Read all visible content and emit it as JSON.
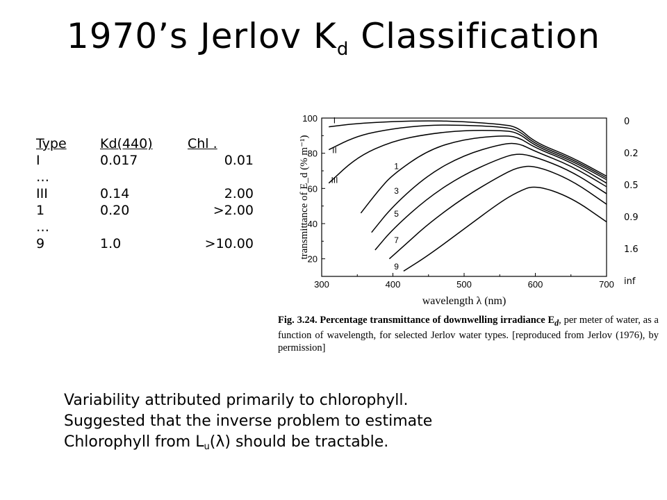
{
  "slide": {
    "title_main": "1970’s Jerlov K",
    "title_sub": "d",
    "title_rest": " Classification"
  },
  "table": {
    "headers": [
      "Type",
      "Kd(440)",
      "Chl   ."
    ],
    "rows": [
      [
        "I",
        "0.017",
        "0.01"
      ],
      [
        "…",
        "",
        ""
      ],
      [
        "III",
        "0.14",
        "2.00"
      ],
      [
        "1",
        "0.20",
        ">2.00"
      ],
      [
        "…",
        "",
        ""
      ],
      [
        "9",
        "1.0",
        ">10.00"
      ]
    ]
  },
  "chl_labels": [
    "0",
    "0.2",
    "0.5",
    "0.9",
    "1.6",
    "inf"
  ],
  "caption": {
    "figure": "Fig. 3.24.",
    "text": "Percentage transmittance of downwelling irradiance E",
    "text_sub": "d",
    "text_rest": ", per meter of water, as a function of wavelength, for selected Jerlov water types. [reproduced from Jerlov (1976), by permission]"
  },
  "notes": {
    "line1": "Variability attributed primarily to chlorophyll.",
    "line2": "Suggested that the inverse problem to estimate",
    "line3_a": "Chlorophyll from L",
    "line3_sub": "u",
    "line3_b": "(",
    "line3_lambda": "λ",
    "line3_c": ") should be tractable."
  },
  "chart_data": {
    "type": "line",
    "xlabel": "wavelength  λ  (nm)",
    "ylabel": "transmittance of E_d (% m⁻¹)",
    "xlim": [
      300,
      700
    ],
    "ylim": [
      10,
      100
    ],
    "xticks": [
      300,
      400,
      500,
      600,
      700
    ],
    "yticks": [
      20,
      40,
      60,
      80,
      100
    ],
    "series": [
      {
        "name": "I",
        "x": [
          310,
          350,
          400,
          450,
          500,
          550,
          575,
          600,
          650,
          700
        ],
        "y": [
          95,
          97,
          98,
          98.5,
          98,
          96.5,
          95,
          86,
          78,
          67
        ]
      },
      {
        "name": "II",
        "x": [
          310,
          350,
          400,
          450,
          500,
          550,
          575,
          600,
          650,
          700
        ],
        "y": [
          82,
          90,
          94,
          96,
          96,
          95,
          93.5,
          85,
          77,
          66
        ]
      },
      {
        "name": "III",
        "x": [
          310,
          350,
          400,
          450,
          500,
          550,
          575,
          600,
          650,
          700
        ],
        "y": [
          63,
          78,
          87,
          91,
          93,
          93,
          92,
          84,
          76,
          65
        ]
      },
      {
        "name": "1",
        "x": [
          355,
          380,
          400,
          450,
          500,
          550,
          575,
          600,
          650,
          700
        ],
        "y": [
          46,
          59,
          68,
          82,
          88,
          90,
          89.5,
          83,
          75,
          63
        ]
      },
      {
        "name": "3",
        "x": [
          370,
          400,
          450,
          500,
          550,
          575,
          600,
          650,
          700
        ],
        "y": [
          35,
          50,
          68,
          79,
          85,
          86,
          81,
          73,
          61
        ]
      },
      {
        "name": "5",
        "x": [
          375,
          400,
          450,
          500,
          550,
          575,
          600,
          650,
          700
        ],
        "y": [
          25,
          37,
          55,
          68,
          77,
          80,
          78,
          70,
          57
        ]
      },
      {
        "name": "7",
        "x": [
          395,
          420,
          450,
          500,
          550,
          575,
          600,
          650,
          700
        ],
        "y": [
          20,
          29,
          40,
          55,
          67,
          72,
          73,
          65,
          51
        ]
      },
      {
        "name": "9",
        "x": [
          415,
          450,
          500,
          550,
          575,
          600,
          650,
          700
        ],
        "y": [
          13,
          22,
          37,
          52,
          58,
          62,
          55,
          41
        ]
      }
    ]
  }
}
